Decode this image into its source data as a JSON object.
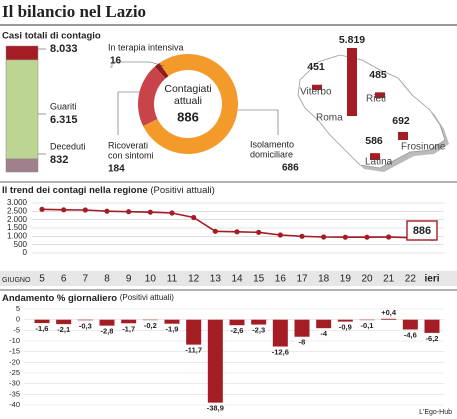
{
  "title": "Il bilancio nel Lazio",
  "source": "L'Ego-Hub",
  "chart_data": [
    {
      "type": "stacked-bar",
      "title": "Casi totali di contagio",
      "total": 8033,
      "total_label": "8.033",
      "segments": [
        {
          "value": 886,
          "color": "#a51d24"
        },
        {
          "name": "Guariti",
          "value": 6315,
          "value_label": "6.315",
          "color": "#bcd593"
        },
        {
          "name": "Deceduti",
          "value": 832,
          "value_label": "832",
          "color": "#a0808d"
        }
      ]
    },
    {
      "type": "donut",
      "center_label": [
        "Contagiati",
        "attuali"
      ],
      "total": 886,
      "categories": [
        [
          "In terapia intensiva"
        ],
        [
          "Ricoverati",
          "con sintomi"
        ],
        [
          "Isolamento",
          "domiciliare"
        ]
      ],
      "values": [
        16,
        184,
        686
      ],
      "colors": [
        "#8e1a1f",
        "#c9444a",
        "#f39a2b"
      ]
    },
    {
      "type": "map",
      "categories": [
        "Viterbo",
        "Rieti",
        "Roma",
        "Latina",
        "Frosinone"
      ],
      "values": [
        451,
        485,
        5819,
        586,
        692
      ],
      "value_labels": [
        "451",
        "485",
        "5.819",
        "586",
        "692"
      ],
      "color": "#a51d24"
    },
    {
      "type": "line",
      "title": "Il trend dei contagi nella regione",
      "subtitle": "(Positivi attuali)",
      "x_label": "GIUGNO",
      "categories": [
        "5",
        "6",
        "7",
        "8",
        "9",
        "10",
        "11",
        "12",
        "13",
        "14",
        "15",
        "16",
        "17",
        "18",
        "19",
        "20",
        "21",
        "22",
        "ieri"
      ],
      "values": [
        2620,
        2590,
        2580,
        2510,
        2480,
        2450,
        2400,
        2130,
        1300,
        1270,
        1240,
        1080,
        1000,
        960,
        950,
        950,
        960,
        920,
        886
      ],
      "color": "#a51d24",
      "ylim": [
        0,
        3000
      ],
      "yticks": [
        0,
        500,
        {
          "value": 1000,
          "label": "1.000"
        },
        {
          "value": 1500,
          "label": "1.500"
        },
        {
          "value": 2000,
          "label": "2.000"
        },
        {
          "value": 2500,
          "label": "2.500"
        },
        {
          "value": 3000,
          "label": "3.000"
        }
      ],
      "grid": true
    },
    {
      "type": "bar",
      "title": "Andamento % giornaliero",
      "subtitle": "(Positivi attuali)",
      "values": [
        -1.6,
        -2.1,
        -0.3,
        -2.8,
        -1.7,
        -0.2,
        -1.9,
        -11.7,
        -38.9,
        -2.6,
        -2.3,
        -12.6,
        -8,
        -4,
        -0.9,
        -0.1,
        0.4,
        -4.6,
        -6.2
      ],
      "value_labels": [
        "-1,6",
        "-2,1",
        "-0,3",
        "-2,8",
        "-1,7",
        "-0,2",
        "-1,9",
        "-11,7",
        "-38,9",
        "-2,6",
        "-2,3",
        "-12,6",
        "-8",
        "-4",
        "-0,9",
        "-0,1",
        "+0,4",
        "-4,6",
        "-6,2"
      ],
      "color": "#a51d24",
      "ylim": [
        -40,
        5
      ],
      "yticks": [
        5,
        0,
        -5,
        -10,
        -15,
        -20,
        -25,
        -30,
        -35,
        -40
      ],
      "grid": true
    }
  ]
}
